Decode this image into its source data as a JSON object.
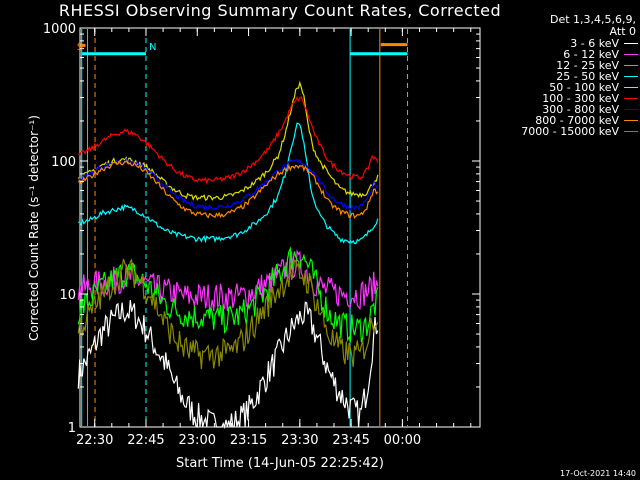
{
  "chart_data": {
    "type": "line",
    "title": "RHESSI Observing Summary Count Rates, Corrected",
    "xlabel": "Start Time (14-Jun-05 22:25:42)",
    "ylabel": "Corrected Count Rate (s⁻¹ detector⁻¹)",
    "yscale": "log",
    "ylim": [
      1,
      1000
    ],
    "xlim_min": [
      0,
      117
    ],
    "xtick_labels": [
      "22:30",
      "22:45",
      "23:00",
      "23:15",
      "23:30",
      "23:45",
      "00:00"
    ],
    "xtick_positions_min": [
      4.3,
      19.3,
      34.3,
      49.3,
      64.3,
      79.3,
      94.3
    ],
    "ytick_labels": [
      "1",
      "10",
      "100",
      "1000"
    ],
    "legend_header": [
      "Det 1,3,4,5,6,9,",
      "Att 0"
    ],
    "series": [
      {
        "name": "3 - 6 keV",
        "color": "#ffffff",
        "x": [
          -0.5,
          3,
          6,
          10,
          13,
          16,
          19,
          22,
          25,
          28,
          31,
          34,
          37,
          40,
          43,
          46,
          49,
          52,
          55,
          58,
          61,
          63,
          65,
          67,
          69,
          71,
          73,
          76,
          79,
          82,
          84,
          86,
          87.5
        ],
        "y": [
          2.5,
          3.5,
          5,
          6.5,
          7.5,
          7,
          5.5,
          4,
          3,
          2,
          1.5,
          1.2,
          1.1,
          1.0,
          1.0,
          1.1,
          1.3,
          1.8,
          2.5,
          3.5,
          5,
          6,
          7,
          6.5,
          5,
          3.5,
          2.5,
          1.8,
          1.4,
          1.2,
          2,
          5,
          7
        ]
      },
      {
        "name": "6 - 12 keV",
        "color": "#ff33ff",
        "x": [
          -0.5,
          3,
          6,
          10,
          13,
          16,
          19,
          22,
          25,
          28,
          31,
          34,
          37,
          40,
          43,
          46,
          49,
          52,
          55,
          58,
          61,
          63,
          65,
          67,
          69,
          71,
          73,
          76,
          79,
          82,
          84,
          86,
          87.5
        ],
        "y": [
          10.5,
          11.5,
          12,
          12.5,
          13.5,
          13,
          12,
          11,
          10.5,
          10,
          9.5,
          9.5,
          9.5,
          9.5,
          9.5,
          9.5,
          10,
          11,
          12,
          14,
          16,
          17,
          16,
          14,
          12,
          11,
          10.5,
          10,
          10,
          10,
          10.5,
          11.5,
          12
        ]
      },
      {
        "name": "12 - 25 keV",
        "color": "#00ff00",
        "x": [
          -0.5,
          3,
          6,
          10,
          13,
          16,
          19,
          22,
          25,
          28,
          31,
          34,
          37,
          40,
          43,
          46,
          49,
          52,
          55,
          58,
          61,
          63,
          65,
          67,
          69,
          71,
          73,
          76,
          79,
          82,
          84,
          86,
          87.5
        ],
        "y": [
          7.5,
          9,
          11,
          13,
          14.5,
          14,
          12,
          10,
          8.5,
          7.5,
          7,
          6.8,
          6.6,
          6.5,
          6.5,
          6.8,
          7.5,
          9,
          11,
          14,
          18,
          20,
          19,
          16,
          12,
          9,
          7,
          6,
          5.5,
          5.5,
          6,
          8,
          9
        ]
      },
      {
        "name": "25 - 50 keV",
        "color": "#00ffff",
        "x": [
          -0.5,
          3,
          6,
          10,
          13,
          16,
          19,
          22,
          25,
          28,
          31,
          34,
          37,
          40,
          43,
          46,
          49,
          52,
          55,
          58,
          60,
          61.5,
          63,
          64,
          65,
          66,
          67,
          68,
          70,
          72,
          74,
          76,
          79,
          82,
          84,
          86,
          87.5
        ],
        "y": [
          34,
          36,
          40,
          43,
          45,
          43,
          39,
          34,
          30,
          28,
          27,
          26,
          26,
          26,
          27,
          28,
          31,
          35,
          42,
          55,
          80,
          120,
          170,
          200,
          160,
          110,
          75,
          55,
          40,
          33,
          29,
          26,
          25,
          25,
          28,
          33,
          38
        ]
      },
      {
        "name": "50 - 100 keV",
        "color": "#dddd00",
        "x": [
          -0.5,
          3,
          6,
          10,
          13,
          16,
          19,
          22,
          25,
          28,
          31,
          34,
          37,
          40,
          43,
          46,
          49,
          52,
          55,
          58,
          60,
          62,
          63.5,
          64.5,
          65.5,
          66.5,
          68,
          70,
          72,
          74,
          76,
          79,
          82,
          84,
          86,
          87.5
        ],
        "y": [
          74,
          82,
          92,
          100,
          103,
          100,
          92,
          80,
          68,
          60,
          55,
          53,
          53,
          53,
          54,
          57,
          63,
          72,
          85,
          110,
          160,
          260,
          360,
          380,
          300,
          200,
          130,
          100,
          85,
          72,
          62,
          57,
          56,
          58,
          70,
          78
        ]
      },
      {
        "name": "100 - 300 keV",
        "color": "#ff0000",
        "x": [
          -0.5,
          3,
          6,
          10,
          13,
          16,
          19,
          22,
          25,
          28,
          31,
          34,
          37,
          40,
          43,
          46,
          49,
          52,
          55,
          58,
          60,
          62,
          63.5,
          64.5,
          65.5,
          67,
          69,
          71,
          73,
          76,
          79,
          82,
          84,
          85.5,
          87.5
        ],
        "y": [
          110,
          122,
          138,
          158,
          168,
          160,
          140,
          118,
          98,
          85,
          76,
          72,
          71,
          72,
          74,
          79,
          88,
          102,
          122,
          160,
          200,
          260,
          290,
          300,
          270,
          210,
          150,
          120,
          98,
          85,
          77,
          75,
          85,
          110,
          95
        ]
      },
      {
        "name": "300 - 800 keV",
        "color": "#0000ff",
        "x": [
          -0.5,
          3,
          6,
          10,
          13,
          16,
          19,
          22,
          25,
          28,
          31,
          34,
          37,
          40,
          43,
          46,
          49,
          52,
          55,
          58,
          61,
          63,
          65,
          67,
          69,
          71,
          73,
          76,
          79,
          82,
          84,
          86,
          87.5
        ],
        "y": [
          72,
          80,
          90,
          98,
          100,
          97,
          88,
          76,
          64,
          55,
          49,
          46,
          45,
          45,
          46,
          49,
          54,
          62,
          72,
          85,
          95,
          100,
          98,
          90,
          78,
          65,
          55,
          48,
          45,
          45,
          52,
          68,
          62
        ]
      },
      {
        "name": "800 - 7000 keV",
        "color": "#ff8800",
        "x": [
          -0.5,
          3,
          6,
          10,
          13,
          16,
          19,
          22,
          25,
          28,
          31,
          34,
          37,
          40,
          43,
          46,
          49,
          52,
          55,
          58,
          61,
          63,
          65,
          67,
          69,
          71,
          73,
          76,
          79,
          82,
          84,
          86,
          87.5
        ],
        "y": [
          68,
          76,
          86,
          95,
          98,
          94,
          84,
          71,
          58,
          49,
          43,
          40,
          39,
          39,
          40,
          43,
          48,
          57,
          68,
          80,
          89,
          92,
          90,
          83,
          71,
          58,
          48,
          42,
          39,
          39,
          45,
          62,
          56
        ]
      },
      {
        "name": "7000 - 15000 keV",
        "color": "#888800",
        "x": [
          -0.5,
          3,
          6,
          10,
          13,
          16,
          19,
          22,
          25,
          28,
          31,
          34,
          37,
          40,
          43,
          46,
          49,
          52,
          55,
          58,
          61,
          63,
          65,
          67,
          69,
          71,
          73,
          76,
          79,
          82,
          84,
          86,
          87.5
        ],
        "y": [
          5.5,
          7,
          9.5,
          12.5,
          15,
          14,
          11.5,
          8.5,
          6,
          4.5,
          3.8,
          3.5,
          3.5,
          3.5,
          3.6,
          4,
          5,
          6.5,
          8.5,
          11,
          13.5,
          14.5,
          14,
          12,
          9,
          6.5,
          4.8,
          3.8,
          3.5,
          3.5,
          4.5,
          6.5,
          7.5
        ]
      }
    ],
    "markers": [
      {
        "label": "S",
        "x": -1.8,
        "color": "#ff8800"
      },
      {
        "label": "N",
        "x": 19.3,
        "color": "#00ffff"
      }
    ],
    "vlines": [
      {
        "x": 0.5,
        "color": "#00ffff",
        "style": "solid"
      },
      {
        "x": 2.2,
        "color": "#ff8800",
        "style": "solid"
      },
      {
        "x": 4.4,
        "color": "#ff8800",
        "style": "dashed"
      },
      {
        "x": 19.3,
        "color": "#00ffff",
        "style": "dashed"
      },
      {
        "x": 79.0,
        "color": "#00ffff",
        "style": "solid"
      },
      {
        "x": 87.7,
        "color": "#ff8800",
        "style": "solid"
      },
      {
        "x": 95.8,
        "color": "#00ffff",
        "style": "dashed"
      },
      {
        "x": 95.8,
        "color": "#ff8800",
        "style": "dashed"
      }
    ],
    "bars": [
      {
        "x0": 0.5,
        "x1": 19.3,
        "y": 640,
        "color": "#00ffff"
      },
      {
        "x0": 79.0,
        "x1": 95.8,
        "y": 640,
        "color": "#00ffff"
      },
      {
        "x0": 88.0,
        "x1": 95.8,
        "y": 750,
        "color": "#ff8800"
      },
      {
        "x0": 0.2,
        "x1": 1.6,
        "y": 740,
        "color": "#ff8800"
      }
    ]
  },
  "timestamp": "17-Oct-2021 14:40"
}
